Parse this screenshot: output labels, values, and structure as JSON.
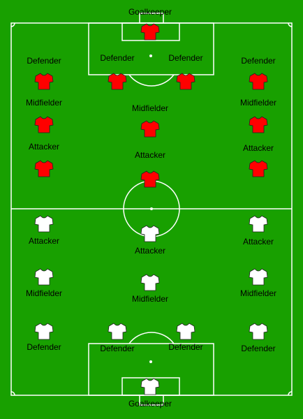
{
  "colors": {
    "pitch": "#18a000",
    "lines": "#ffffff",
    "home_shirt": "#ff0000",
    "away_shirt": "#ffffff",
    "shirt_outline": "#222222",
    "label_text": "#000000"
  },
  "home_team": {
    "shirt_color": "#ff0000",
    "players": [
      {
        "role": "Goalkeeper",
        "label": "Goalkeeper"
      },
      {
        "role": "Defender",
        "label": "Defender"
      },
      {
        "role": "Defender",
        "label": "Defender"
      },
      {
        "role": "Defender",
        "label": "Defender"
      },
      {
        "role": "Defender",
        "label": "Defender"
      },
      {
        "role": "Midfielder",
        "label": "Midfielder"
      },
      {
        "role": "Midfielder",
        "label": "Midfielder"
      },
      {
        "role": "Midfielder",
        "label": "Midfielder"
      },
      {
        "role": "Attacker",
        "label": "Attacker"
      },
      {
        "role": "Attacker",
        "label": "Attacker"
      },
      {
        "role": "Attacker",
        "label": "Attacker"
      }
    ]
  },
  "away_team": {
    "shirt_color": "#ffffff",
    "players": [
      {
        "role": "Attacker",
        "label": "Attacker"
      },
      {
        "role": "Attacker",
        "label": "Attacker"
      },
      {
        "role": "Attacker",
        "label": "Attacker"
      },
      {
        "role": "Midfielder",
        "label": "Midfielder"
      },
      {
        "role": "Midfielder",
        "label": "Midfielder"
      },
      {
        "role": "Midfielder",
        "label": "Midfielder"
      },
      {
        "role": "Defender",
        "label": "Defender"
      },
      {
        "role": "Defender",
        "label": "Defender"
      },
      {
        "role": "Defender",
        "label": "Defender"
      },
      {
        "role": "Defender",
        "label": "Defender"
      },
      {
        "role": "Goalkeeper",
        "label": "Goalkeeper"
      }
    ]
  },
  "icons": {
    "player": "shirt-icon"
  }
}
